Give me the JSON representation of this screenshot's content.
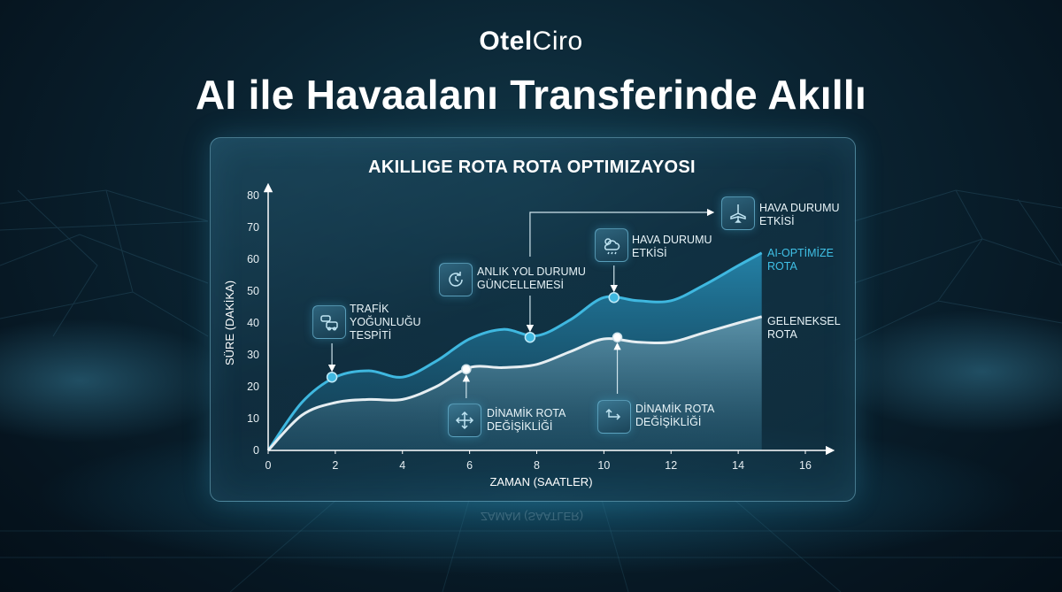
{
  "brand": {
    "part1": "Otel",
    "part2": "Ciro"
  },
  "headline": "AI ile Havaalanı Transferinde Akıllı",
  "chart_data": {
    "type": "line",
    "title": "AKILLIGE ROTA ROTA OPTIMIZAYOSI",
    "xlabel": "ZAMAN (SAATLER)",
    "ylabel": "SÜRE (DAKİKA)",
    "xlim": [
      0,
      16
    ],
    "ylim": [
      0,
      80
    ],
    "xticks": [
      0,
      2,
      4,
      6,
      8,
      10,
      12,
      14,
      16
    ],
    "yticks": [
      0,
      10,
      20,
      30,
      40,
      50,
      60,
      70,
      80
    ],
    "grid": false,
    "series": [
      {
        "name": "AI-OPTİMİZE ROTA",
        "color": "#3fb8e0",
        "x": [
          0,
          1,
          2,
          3,
          4,
          5,
          6,
          7,
          8,
          9,
          10,
          11,
          12,
          13,
          14,
          14.7
        ],
        "y": [
          0,
          15,
          23,
          25,
          23,
          28,
          35,
          38,
          36,
          41,
          48,
          47,
          47,
          52,
          58,
          62
        ]
      },
      {
        "name": "GELENEKSEL ROTA",
        "color": "#e6eef2",
        "x": [
          0,
          1,
          2,
          3,
          4,
          5,
          6,
          7,
          8,
          9,
          10,
          11,
          12,
          13,
          14,
          14.7
        ],
        "y": [
          0,
          11,
          15,
          16,
          16,
          20,
          26,
          26,
          27,
          31,
          35,
          34,
          34,
          37,
          40,
          42
        ]
      }
    ],
    "markers": [
      {
        "series": 0,
        "x": 1.9,
        "y": 23
      },
      {
        "series": 0,
        "x": 7.8,
        "y": 35.5
      },
      {
        "series": 0,
        "x": 10.3,
        "y": 48
      },
      {
        "series": 1,
        "x": 5.9,
        "y": 25.5
      },
      {
        "series": 1,
        "x": 10.4,
        "y": 35.5
      }
    ],
    "annotations": [
      {
        "id": "traffic",
        "icon": "traffic-cars-icon",
        "lines": [
          "TRAFİK",
          "YOĞUNLUĞU",
          "TESPİTİ"
        ]
      },
      {
        "id": "road",
        "icon": "refresh-clock-icon",
        "lines": [
          "ANLIK YOL DURUMU",
          "GÜNCELLEMESİ"
        ]
      },
      {
        "id": "weather1",
        "icon": "weather-cloud-icon",
        "lines": [
          "HAVA DURUMU",
          "ETKİSİ"
        ]
      },
      {
        "id": "weather2",
        "icon": "airplane-icon",
        "lines": [
          "HAVA DURUMU",
          "ETKİSİ"
        ]
      },
      {
        "id": "reroute1",
        "icon": "route-arrows-icon",
        "lines": [
          "DİNAMİK ROTA",
          "DEĞİŞİKLİĞİ"
        ]
      },
      {
        "id": "reroute2",
        "icon": "route-turn-icon",
        "lines": [
          "DİNAMİK ROTA",
          "DEĞİŞİKLİĞİ"
        ]
      },
      {
        "id": "ai-label",
        "lines": [
          "AI-OPTİMİZE",
          "ROTA"
        ]
      },
      {
        "id": "trad-label",
        "lines": [
          "GELENEKSEL",
          "ROTA"
        ]
      }
    ]
  }
}
